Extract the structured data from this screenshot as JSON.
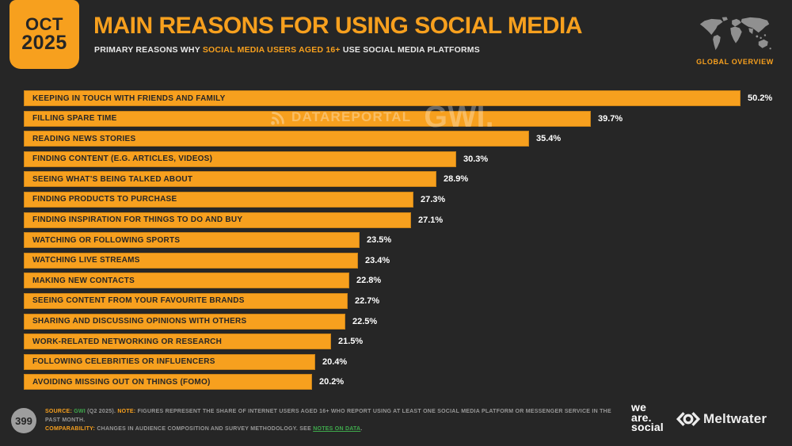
{
  "header": {
    "date_badge": {
      "month": "OCT",
      "year": "2025"
    },
    "title": "MAIN REASONS FOR USING SOCIAL MEDIA",
    "subtitle_prefix": "PRIMARY REASONS WHY ",
    "subtitle_highlight": "SOCIAL MEDIA USERS AGED 16+",
    "subtitle_suffix": " USE SOCIAL MEDIA PLATFORMS",
    "region_label": "GLOBAL OVERVIEW"
  },
  "watermark": {
    "brand1": "DATAREPORTAL",
    "brand2": "GWI."
  },
  "chart_data": {
    "type": "bar",
    "orientation": "horizontal",
    "unit": "%",
    "title": "Main reasons for using social media",
    "xlim": [
      0,
      52
    ],
    "categories": [
      "KEEPING IN TOUCH WITH FRIENDS AND FAMILY",
      "FILLING SPARE TIME",
      "READING NEWS STORIES",
      "FINDING CONTENT (E.G. ARTICLES, VIDEOS)",
      "SEEING WHAT’S BEING TALKED ABOUT",
      "FINDING PRODUCTS TO PURCHASE",
      "FINDING INSPIRATION FOR THINGS TO DO AND BUY",
      "WATCHING OR FOLLOWING SPORTS",
      "WATCHING LIVE STREAMS",
      "MAKING NEW CONTACTS",
      "SEEING CONTENT FROM YOUR FAVOURITE BRANDS",
      "SHARING AND DISCUSSING OPINIONS WITH OTHERS",
      "WORK-RELATED NETWORKING OR RESEARCH",
      "FOLLOWING CELEBRITIES OR INFLUENCERS",
      "AVOIDING MISSING OUT ON THINGS (FOMO)"
    ],
    "values": [
      50.2,
      39.7,
      35.4,
      30.3,
      28.9,
      27.3,
      27.1,
      23.5,
      23.4,
      22.8,
      22.7,
      22.5,
      21.5,
      20.4,
      20.2
    ]
  },
  "footer": {
    "page_number": "399",
    "source_label": "SOURCE: ",
    "source_link": "GWI",
    "source_mid": " (Q2 2025). ",
    "note_label": "NOTE: ",
    "note_text": "FIGURES REPRESENT THE SHARE OF INTERNET USERS AGED 16+ WHO REPORT USING AT LEAST ONE SOCIAL MEDIA PLATFORM OR MESSENGER SERVICE IN THE PAST MONTH.",
    "comparability_label": "COMPARABILITY: ",
    "comparability_text": "CHANGES IN AUDIENCE COMPOSITION AND SURVEY METHODOLOGY. SEE ",
    "notes_link": "NOTES ON DATA",
    "comparability_end": ".",
    "we_are_social_lines": [
      "we",
      "are.",
      "social"
    ],
    "meltwater_label": "Meltwater"
  },
  "colors": {
    "accent_orange": "#F7A01E",
    "background": "#262626",
    "bar_label": "#262626",
    "value_text": "#FFFFFF",
    "footer_text": "#979797",
    "link_green": "#3FA94C",
    "map_gray": "#909090"
  }
}
